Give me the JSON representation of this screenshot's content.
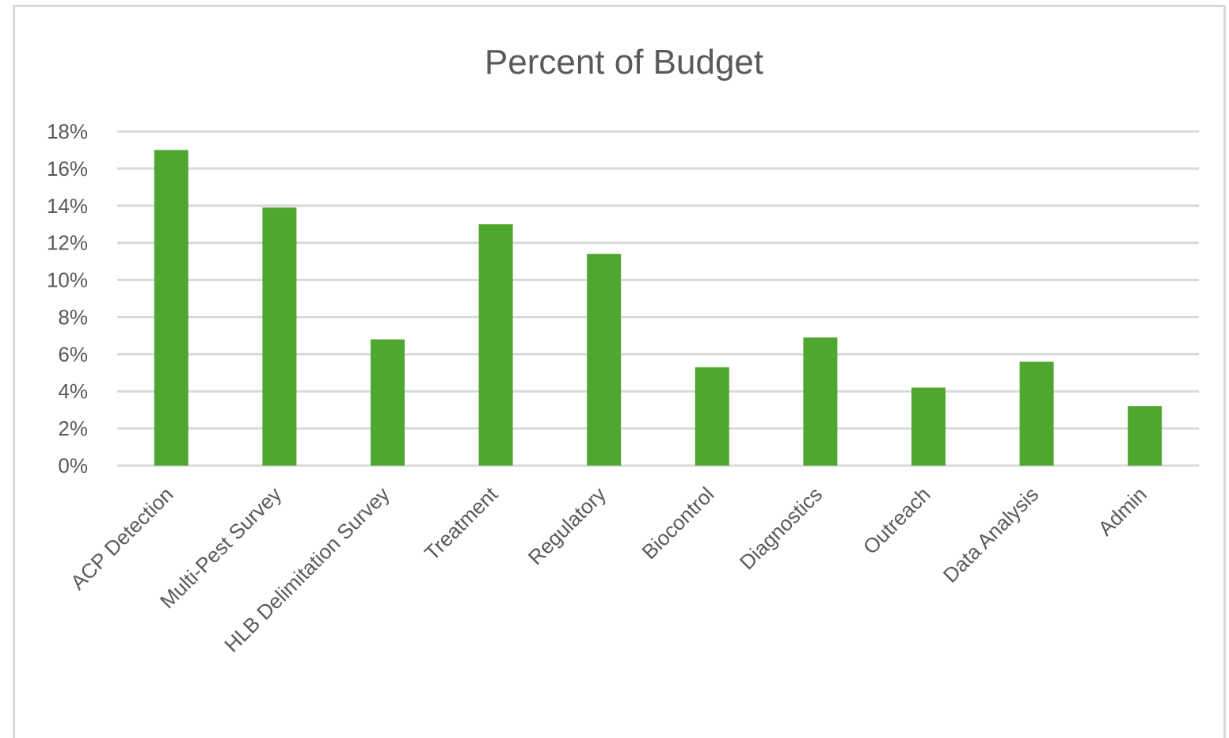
{
  "chart_data": {
    "type": "bar",
    "title": "Percent of Budget",
    "categories": [
      "ACP Detection",
      "Multi-Pest Survey",
      "HLB Delimitation Survey",
      "Treatment",
      "Regulatory",
      "Biocontrol",
      "Diagnostics",
      "Outreach",
      "Data Analysis",
      "Admin"
    ],
    "values": [
      17.0,
      13.9,
      6.8,
      13.0,
      11.4,
      5.3,
      6.9,
      4.2,
      5.6,
      3.2
    ],
    "ylim": [
      0,
      18
    ],
    "yticks": [
      "0%",
      "2%",
      "4%",
      "6%",
      "8%",
      "10%",
      "12%",
      "14%",
      "16%",
      "18%"
    ],
    "grid": true,
    "bar_color": "#4ea72e",
    "grid_color": "#d9d9d9"
  }
}
